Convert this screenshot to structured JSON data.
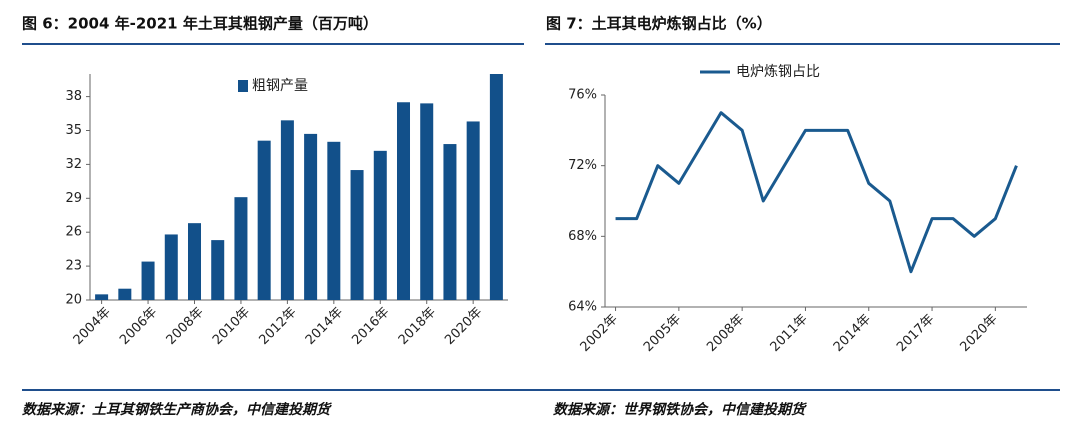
{
  "chart_data": [
    {
      "type": "bar",
      "title": "图 6：2004 年-2021 年土耳其粗钢产量（百万吨）",
      "source": "数据来源：土耳其钢铁生产商协会，中信建投期货",
      "categories": [
        "2004年",
        null,
        "2006年",
        null,
        "2008年",
        null,
        "2010年",
        null,
        "2012年",
        null,
        "2014年",
        null,
        "2016年",
        null,
        "2018年",
        null,
        "2020年",
        null
      ],
      "series": [
        {
          "name": "粗钢产量",
          "color": "#12508a",
          "values": [
            20.5,
            21.0,
            23.4,
            25.8,
            26.8,
            25.3,
            29.1,
            34.1,
            35.9,
            34.7,
            34.0,
            31.5,
            33.2,
            37.5,
            37.4,
            33.8,
            35.8,
            40.0
          ]
        }
      ],
      "ylim": [
        20,
        40
      ],
      "yticks": [
        20,
        23,
        26,
        29,
        32,
        35,
        38
      ],
      "legend": "top"
    },
    {
      "type": "line",
      "title": "图 7：土耳其电炉炼钢占比（%）",
      "source": "数据来源：世界钢铁协会，中信建投期货",
      "categories": [
        "2002年",
        null,
        null,
        "2005年",
        null,
        null,
        "2008年",
        null,
        null,
        "2011年",
        null,
        null,
        "2014年",
        null,
        null,
        "2017年",
        null,
        null,
        "2020年",
        null
      ],
      "series": [
        {
          "name": "电炉炼钢占比",
          "color": "#1a5a8f",
          "values": [
            69,
            69,
            72,
            71,
            73,
            75,
            74,
            70,
            72,
            74,
            74,
            74,
            71,
            70,
            66,
            69,
            69,
            68,
            69,
            72
          ]
        }
      ],
      "ylim": [
        64,
        76
      ],
      "yticks": [
        {
          "value": 64,
          "label": "64%"
        },
        {
          "value": 68,
          "label": "68%"
        },
        {
          "value": 72,
          "label": "72%"
        },
        {
          "value": 76,
          "label": "76%"
        }
      ],
      "legend": "top"
    }
  ]
}
